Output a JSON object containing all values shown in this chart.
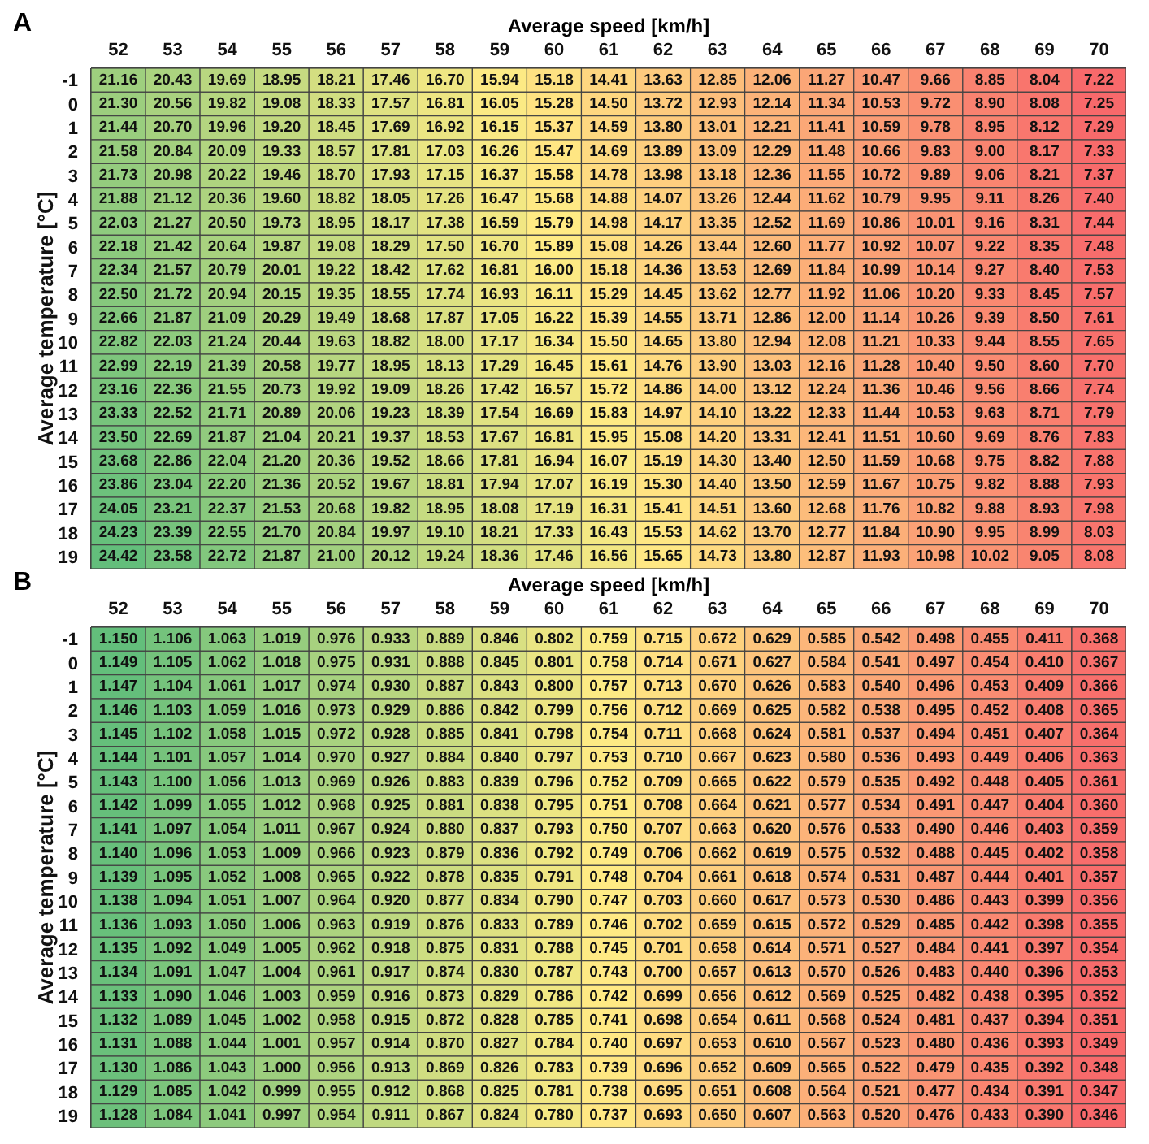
{
  "chart_data": [
    {
      "type": "heatmap",
      "title": "A",
      "xlabel": "Average speed [km/h]",
      "ylabel": "Average temperature [°C]",
      "data_labels": true,
      "categories": [
        "52",
        "53",
        "54",
        "55",
        "56",
        "57",
        "58",
        "59",
        "60",
        "61",
        "62",
        "63",
        "64",
        "65",
        "66",
        "67",
        "68",
        "69",
        "70"
      ],
      "y_categories": [
        "-1",
        "0",
        "1",
        "2",
        "3",
        "4",
        "5",
        "6",
        "7",
        "8",
        "9",
        "10",
        "11",
        "12",
        "13",
        "14",
        "15",
        "16",
        "17",
        "18",
        "19"
      ],
      "cell_labels": [
        [
          "21.16",
          "20.43",
          "19.69",
          "18.95",
          "18.21",
          "17.46",
          "16.70",
          "15.94",
          "15.18",
          "14.41",
          "13.63",
          "12.85",
          "12.06",
          "11.27",
          "10.47",
          "9.66",
          "8.85",
          "8.04",
          "7.22"
        ],
        [
          "21.30",
          "20.56",
          "19.82",
          "19.08",
          "18.33",
          "17.57",
          "16.81",
          "16.05",
          "15.28",
          "14.50",
          "13.72",
          "12.93",
          "12.14",
          "11.34",
          "10.53",
          "9.72",
          "8.90",
          "8.08",
          "7.25"
        ],
        [
          "21.44",
          "20.70",
          "19.96",
          "19.20",
          "18.45",
          "17.69",
          "16.92",
          "16.15",
          "15.37",
          "14.59",
          "13.80",
          "13.01",
          "12.21",
          "11.41",
          "10.59",
          "9.78",
          "8.95",
          "8.12",
          "7.29"
        ],
        [
          "21.58",
          "20.84",
          "20.09",
          "19.33",
          "18.57",
          "17.81",
          "17.03",
          "16.26",
          "15.47",
          "14.69",
          "13.89",
          "13.09",
          "12.29",
          "11.48",
          "10.66",
          "9.83",
          "9.00",
          "8.17",
          "7.33"
        ],
        [
          "21.73",
          "20.98",
          "20.22",
          "19.46",
          "18.70",
          "17.93",
          "17.15",
          "16.37",
          "15.58",
          "14.78",
          "13.98",
          "13.18",
          "12.36",
          "11.55",
          "10.72",
          "9.89",
          "9.06",
          "8.21",
          "7.37"
        ],
        [
          "21.88",
          "21.12",
          "20.36",
          "19.60",
          "18.82",
          "18.05",
          "17.26",
          "16.47",
          "15.68",
          "14.88",
          "14.07",
          "13.26",
          "12.44",
          "11.62",
          "10.79",
          "9.95",
          "9.11",
          "8.26",
          "7.40"
        ],
        [
          "22.03",
          "21.27",
          "20.50",
          "19.73",
          "18.95",
          "18.17",
          "17.38",
          "16.59",
          "15.79",
          "14.98",
          "14.17",
          "13.35",
          "12.52",
          "11.69",
          "10.86",
          "10.01",
          "9.16",
          "8.31",
          "7.44"
        ],
        [
          "22.18",
          "21.42",
          "20.64",
          "19.87",
          "19.08",
          "18.29",
          "17.50",
          "16.70",
          "15.89",
          "15.08",
          "14.26",
          "13.44",
          "12.60",
          "11.77",
          "10.92",
          "10.07",
          "9.22",
          "8.35",
          "7.48"
        ],
        [
          "22.34",
          "21.57",
          "20.79",
          "20.01",
          "19.22",
          "18.42",
          "17.62",
          "16.81",
          "16.00",
          "15.18",
          "14.36",
          "13.53",
          "12.69",
          "11.84",
          "10.99",
          "10.14",
          "9.27",
          "8.40",
          "7.53"
        ],
        [
          "22.50",
          "21.72",
          "20.94",
          "20.15",
          "19.35",
          "18.55",
          "17.74",
          "16.93",
          "16.11",
          "15.29",
          "14.45",
          "13.62",
          "12.77",
          "11.92",
          "11.06",
          "10.20",
          "9.33",
          "8.45",
          "7.57"
        ],
        [
          "22.66",
          "21.87",
          "21.09",
          "20.29",
          "19.49",
          "18.68",
          "17.87",
          "17.05",
          "16.22",
          "15.39",
          "14.55",
          "13.71",
          "12.86",
          "12.00",
          "11.14",
          "10.26",
          "9.39",
          "8.50",
          "7.61"
        ],
        [
          "22.82",
          "22.03",
          "21.24",
          "20.44",
          "19.63",
          "18.82",
          "18.00",
          "17.17",
          "16.34",
          "15.50",
          "14.65",
          "13.80",
          "12.94",
          "12.08",
          "11.21",
          "10.33",
          "9.44",
          "8.55",
          "7.65"
        ],
        [
          "22.99",
          "22.19",
          "21.39",
          "20.58",
          "19.77",
          "18.95",
          "18.13",
          "17.29",
          "16.45",
          "15.61",
          "14.76",
          "13.90",
          "13.03",
          "12.16",
          "11.28",
          "10.40",
          "9.50",
          "8.60",
          "7.70"
        ],
        [
          "23.16",
          "22.36",
          "21.55",
          "20.73",
          "19.92",
          "19.09",
          "18.26",
          "17.42",
          "16.57",
          "15.72",
          "14.86",
          "14.00",
          "13.12",
          "12.24",
          "11.36",
          "10.46",
          "9.56",
          "8.66",
          "7.74"
        ],
        [
          "23.33",
          "22.52",
          "21.71",
          "20.89",
          "20.06",
          "19.23",
          "18.39",
          "17.54",
          "16.69",
          "15.83",
          "14.97",
          "14.10",
          "13.22",
          "12.33",
          "11.44",
          "10.53",
          "9.63",
          "8.71",
          "7.79"
        ],
        [
          "23.50",
          "22.69",
          "21.87",
          "21.04",
          "20.21",
          "19.37",
          "18.53",
          "17.67",
          "16.81",
          "15.95",
          "15.08",
          "14.20",
          "13.31",
          "12.41",
          "11.51",
          "10.60",
          "9.69",
          "8.76",
          "7.83"
        ],
        [
          "23.68",
          "22.86",
          "22.04",
          "21.20",
          "20.36",
          "19.52",
          "18.66",
          "17.81",
          "16.94",
          "16.07",
          "15.19",
          "14.30",
          "13.40",
          "12.50",
          "11.59",
          "10.68",
          "9.75",
          "8.82",
          "7.88"
        ],
        [
          "23.86",
          "23.04",
          "22.20",
          "21.36",
          "20.52",
          "19.67",
          "18.81",
          "17.94",
          "17.07",
          "16.19",
          "15.30",
          "14.40",
          "13.50",
          "12.59",
          "11.67",
          "10.75",
          "9.82",
          "8.88",
          "7.93"
        ],
        [
          "24.05",
          "23.21",
          "22.37",
          "21.53",
          "20.68",
          "19.82",
          "18.95",
          "18.08",
          "17.19",
          "16.31",
          "15.41",
          "14.51",
          "13.60",
          "12.68",
          "11.76",
          "10.82",
          "9.88",
          "8.93",
          "7.98"
        ],
        [
          "24.23",
          "23.39",
          "22.55",
          "21.70",
          "20.84",
          "19.97",
          "19.10",
          "18.21",
          "17.33",
          "16.43",
          "15.53",
          "14.62",
          "13.70",
          "12.77",
          "11.84",
          "10.90",
          "9.95",
          "8.99",
          "8.03"
        ],
        [
          "24.42",
          "23.58",
          "22.72",
          "21.87",
          "21.00",
          "20.12",
          "19.24",
          "18.36",
          "17.46",
          "16.56",
          "15.65",
          "14.73",
          "13.80",
          "12.87",
          "11.93",
          "10.98",
          "10.02",
          "9.05",
          "8.08"
        ]
      ],
      "cells": [
        [
          21.16,
          20.43,
          19.69,
          18.95,
          18.21,
          17.46,
          16.7,
          15.94,
          15.18,
          14.41,
          13.63,
          12.85,
          12.06,
          11.27,
          10.47,
          9.66,
          8.85,
          8.04,
          7.22
        ],
        [
          21.3,
          20.56,
          19.82,
          19.08,
          18.33,
          17.57,
          16.81,
          16.05,
          15.28,
          14.5,
          13.72,
          12.93,
          12.14,
          11.34,
          10.53,
          9.72,
          8.9,
          8.08,
          7.25
        ],
        [
          21.44,
          20.7,
          19.96,
          19.2,
          18.45,
          17.69,
          16.92,
          16.15,
          15.37,
          14.59,
          13.8,
          13.01,
          12.21,
          11.41,
          10.59,
          9.78,
          8.95,
          8.12,
          7.29
        ],
        [
          21.58,
          20.84,
          20.09,
          19.33,
          18.57,
          17.81,
          17.03,
          16.26,
          15.47,
          14.69,
          13.89,
          13.09,
          12.29,
          11.48,
          10.66,
          9.83,
          9.0,
          8.17,
          7.33
        ],
        [
          21.73,
          20.98,
          20.22,
          19.46,
          18.7,
          17.93,
          17.15,
          16.37,
          15.58,
          14.78,
          13.98,
          13.18,
          12.36,
          11.55,
          10.72,
          9.89,
          9.06,
          8.21,
          7.37
        ],
        [
          21.88,
          21.12,
          20.36,
          19.6,
          18.82,
          18.05,
          17.26,
          16.47,
          15.68,
          14.88,
          14.07,
          13.26,
          12.44,
          11.62,
          10.79,
          9.95,
          9.11,
          8.26,
          7.4
        ],
        [
          22.03,
          21.27,
          20.5,
          19.73,
          18.95,
          18.17,
          17.38,
          16.59,
          15.79,
          14.98,
          14.17,
          13.35,
          12.52,
          11.69,
          10.86,
          10.01,
          9.16,
          8.31,
          7.44
        ],
        [
          22.18,
          21.42,
          20.64,
          19.87,
          19.08,
          18.29,
          17.5,
          16.7,
          15.89,
          15.08,
          14.26,
          13.44,
          12.6,
          11.77,
          10.92,
          10.07,
          9.22,
          8.35,
          7.48
        ],
        [
          22.34,
          21.57,
          20.79,
          20.01,
          19.22,
          18.42,
          17.62,
          16.81,
          16.0,
          15.18,
          14.36,
          13.53,
          12.69,
          11.84,
          10.99,
          10.14,
          9.27,
          8.4,
          7.53
        ],
        [
          22.5,
          21.72,
          20.94,
          20.15,
          19.35,
          18.55,
          17.74,
          16.93,
          16.11,
          15.29,
          14.45,
          13.62,
          12.77,
          11.92,
          11.06,
          10.2,
          9.33,
          8.45,
          7.57
        ],
        [
          22.66,
          21.87,
          21.09,
          20.29,
          19.49,
          18.68,
          17.87,
          17.05,
          16.22,
          15.39,
          14.55,
          13.71,
          12.86,
          12.0,
          11.14,
          10.26,
          9.39,
          8.5,
          7.61
        ],
        [
          22.82,
          22.03,
          21.24,
          20.44,
          19.63,
          18.82,
          18.0,
          17.17,
          16.34,
          15.5,
          14.65,
          13.8,
          12.94,
          12.08,
          11.21,
          10.33,
          9.44,
          8.55,
          7.65
        ],
        [
          22.99,
          22.19,
          21.39,
          20.58,
          19.77,
          18.95,
          18.13,
          17.29,
          16.45,
          15.61,
          14.76,
          13.9,
          13.03,
          12.16,
          11.28,
          10.4,
          9.5,
          8.6,
          7.7
        ],
        [
          23.16,
          22.36,
          21.55,
          20.73,
          19.92,
          19.09,
          18.26,
          17.42,
          16.57,
          15.72,
          14.86,
          14.0,
          13.12,
          12.24,
          11.36,
          10.46,
          9.56,
          8.66,
          7.74
        ],
        [
          23.33,
          22.52,
          21.71,
          20.89,
          20.06,
          19.23,
          18.39,
          17.54,
          16.69,
          15.83,
          14.97,
          14.1,
          13.22,
          12.33,
          11.44,
          10.53,
          9.63,
          8.71,
          7.79
        ],
        [
          23.5,
          22.69,
          21.87,
          21.04,
          20.21,
          19.37,
          18.53,
          17.67,
          16.81,
          15.95,
          15.08,
          14.2,
          13.31,
          12.41,
          11.51,
          10.6,
          9.69,
          8.76,
          7.83
        ],
        [
          23.68,
          22.86,
          22.04,
          21.2,
          20.36,
          19.52,
          18.66,
          17.81,
          16.94,
          16.07,
          15.19,
          14.3,
          13.4,
          12.5,
          11.59,
          10.68,
          9.75,
          8.82,
          7.88
        ],
        [
          23.86,
          23.04,
          22.2,
          21.36,
          20.52,
          19.67,
          18.81,
          17.94,
          17.07,
          16.19,
          15.3,
          14.4,
          13.5,
          12.59,
          11.67,
          10.75,
          9.82,
          8.88,
          7.93
        ],
        [
          24.05,
          23.21,
          22.37,
          21.53,
          20.68,
          19.82,
          18.95,
          18.08,
          17.19,
          16.31,
          15.41,
          14.51,
          13.6,
          12.68,
          11.76,
          10.82,
          9.88,
          8.93,
          7.98
        ],
        [
          24.23,
          23.39,
          22.55,
          21.7,
          20.84,
          19.97,
          19.1,
          18.21,
          17.33,
          16.43,
          15.53,
          14.62,
          13.7,
          12.77,
          11.84,
          10.9,
          9.95,
          8.99,
          8.03
        ],
        [
          24.42,
          23.58,
          22.72,
          21.87,
          21.0,
          20.12,
          19.24,
          18.36,
          17.46,
          16.56,
          15.65,
          14.73,
          13.8,
          12.87,
          11.93,
          10.98,
          10.02,
          9.05,
          8.08
        ]
      ]
    },
    {
      "type": "heatmap",
      "title": "B",
      "xlabel": "Average speed [km/h]",
      "ylabel": "Average temperature [°C]",
      "data_labels": true,
      "categories": [
        "52",
        "53",
        "54",
        "55",
        "56",
        "57",
        "58",
        "59",
        "60",
        "61",
        "62",
        "63",
        "64",
        "65",
        "66",
        "67",
        "68",
        "69",
        "70"
      ],
      "y_categories": [
        "-1",
        "0",
        "1",
        "2",
        "3",
        "4",
        "5",
        "6",
        "7",
        "8",
        "9",
        "10",
        "11",
        "12",
        "13",
        "14",
        "15",
        "16",
        "17",
        "18",
        "19"
      ],
      "cell_labels": [
        [
          "1.150",
          "1.106",
          "1.063",
          "1.019",
          "0.976",
          "0.933",
          "0.889",
          "0.846",
          "0.802",
          "0.759",
          "0.715",
          "0.672",
          "0.629",
          "0.585",
          "0.542",
          "0.498",
          "0.455",
          "0.411",
          "0.368"
        ],
        [
          "1.149",
          "1.105",
          "1.062",
          "1.018",
          "0.975",
          "0.931",
          "0.888",
          "0.845",
          "0.801",
          "0.758",
          "0.714",
          "0.671",
          "0.627",
          "0.584",
          "0.541",
          "0.497",
          "0.454",
          "0.410",
          "0.367"
        ],
        [
          "1.147",
          "1.104",
          "1.061",
          "1.017",
          "0.974",
          "0.930",
          "0.887",
          "0.843",
          "0.800",
          "0.757",
          "0.713",
          "0.670",
          "0.626",
          "0.583",
          "0.540",
          "0.496",
          "0.453",
          "0.409",
          "0.366"
        ],
        [
          "1.146",
          "1.103",
          "1.059",
          "1.016",
          "0.973",
          "0.929",
          "0.886",
          "0.842",
          "0.799",
          "0.756",
          "0.712",
          "0.669",
          "0.625",
          "0.582",
          "0.538",
          "0.495",
          "0.452",
          "0.408",
          "0.365"
        ],
        [
          "1.145",
          "1.102",
          "1.058",
          "1.015",
          "0.972",
          "0.928",
          "0.885",
          "0.841",
          "0.798",
          "0.754",
          "0.711",
          "0.668",
          "0.624",
          "0.581",
          "0.537",
          "0.494",
          "0.451",
          "0.407",
          "0.364"
        ],
        [
          "1.144",
          "1.101",
          "1.057",
          "1.014",
          "0.970",
          "0.927",
          "0.884",
          "0.840",
          "0.797",
          "0.753",
          "0.710",
          "0.667",
          "0.623",
          "0.580",
          "0.536",
          "0.493",
          "0.449",
          "0.406",
          "0.363"
        ],
        [
          "1.143",
          "1.100",
          "1.056",
          "1.013",
          "0.969",
          "0.926",
          "0.883",
          "0.839",
          "0.796",
          "0.752",
          "0.709",
          "0.665",
          "0.622",
          "0.579",
          "0.535",
          "0.492",
          "0.448",
          "0.405",
          "0.361"
        ],
        [
          "1.142",
          "1.099",
          "1.055",
          "1.012",
          "0.968",
          "0.925",
          "0.881",
          "0.838",
          "0.795",
          "0.751",
          "0.708",
          "0.664",
          "0.621",
          "0.577",
          "0.534",
          "0.491",
          "0.447",
          "0.404",
          "0.360"
        ],
        [
          "1.141",
          "1.097",
          "1.054",
          "1.011",
          "0.967",
          "0.924",
          "0.880",
          "0.837",
          "0.793",
          "0.750",
          "0.707",
          "0.663",
          "0.620",
          "0.576",
          "0.533",
          "0.490",
          "0.446",
          "0.403",
          "0.359"
        ],
        [
          "1.140",
          "1.096",
          "1.053",
          "1.009",
          "0.966",
          "0.923",
          "0.879",
          "0.836",
          "0.792",
          "0.749",
          "0.706",
          "0.662",
          "0.619",
          "0.575",
          "0.532",
          "0.488",
          "0.445",
          "0.402",
          "0.358"
        ],
        [
          "1.139",
          "1.095",
          "1.052",
          "1.008",
          "0.965",
          "0.922",
          "0.878",
          "0.835",
          "0.791",
          "0.748",
          "0.704",
          "0.661",
          "0.618",
          "0.574",
          "0.531",
          "0.487",
          "0.444",
          "0.401",
          "0.357"
        ],
        [
          "1.138",
          "1.094",
          "1.051",
          "1.007",
          "0.964",
          "0.920",
          "0.877",
          "0.834",
          "0.790",
          "0.747",
          "0.703",
          "0.660",
          "0.617",
          "0.573",
          "0.530",
          "0.486",
          "0.443",
          "0.399",
          "0.356"
        ],
        [
          "1.136",
          "1.093",
          "1.050",
          "1.006",
          "0.963",
          "0.919",
          "0.876",
          "0.833",
          "0.789",
          "0.746",
          "0.702",
          "0.659",
          "0.615",
          "0.572",
          "0.529",
          "0.485",
          "0.442",
          "0.398",
          "0.355"
        ],
        [
          "1.135",
          "1.092",
          "1.049",
          "1.005",
          "0.962",
          "0.918",
          "0.875",
          "0.831",
          "0.788",
          "0.745",
          "0.701",
          "0.658",
          "0.614",
          "0.571",
          "0.527",
          "0.484",
          "0.441",
          "0.397",
          "0.354"
        ],
        [
          "1.134",
          "1.091",
          "1.047",
          "1.004",
          "0.961",
          "0.917",
          "0.874",
          "0.830",
          "0.787",
          "0.743",
          "0.700",
          "0.657",
          "0.613",
          "0.570",
          "0.526",
          "0.483",
          "0.440",
          "0.396",
          "0.353"
        ],
        [
          "1.133",
          "1.090",
          "1.046",
          "1.003",
          "0.959",
          "0.916",
          "0.873",
          "0.829",
          "0.786",
          "0.742",
          "0.699",
          "0.656",
          "0.612",
          "0.569",
          "0.525",
          "0.482",
          "0.438",
          "0.395",
          "0.352"
        ],
        [
          "1.132",
          "1.089",
          "1.045",
          "1.002",
          "0.958",
          "0.915",
          "0.872",
          "0.828",
          "0.785",
          "0.741",
          "0.698",
          "0.654",
          "0.611",
          "0.568",
          "0.524",
          "0.481",
          "0.437",
          "0.394",
          "0.351"
        ],
        [
          "1.131",
          "1.088",
          "1.044",
          "1.001",
          "0.957",
          "0.914",
          "0.870",
          "0.827",
          "0.784",
          "0.740",
          "0.697",
          "0.653",
          "0.610",
          "0.567",
          "0.523",
          "0.480",
          "0.436",
          "0.393",
          "0.349"
        ],
        [
          "1.130",
          "1.086",
          "1.043",
          "1.000",
          "0.956",
          "0.913",
          "0.869",
          "0.826",
          "0.783",
          "0.739",
          "0.696",
          "0.652",
          "0.609",
          "0.565",
          "0.522",
          "0.479",
          "0.435",
          "0.392",
          "0.348"
        ],
        [
          "1.129",
          "1.085",
          "1.042",
          "0.999",
          "0.955",
          "0.912",
          "0.868",
          "0.825",
          "0.781",
          "0.738",
          "0.695",
          "0.651",
          "0.608",
          "0.564",
          "0.521",
          "0.477",
          "0.434",
          "0.391",
          "0.347"
        ],
        [
          "1.128",
          "1.084",
          "1.041",
          "0.997",
          "0.954",
          "0.911",
          "0.867",
          "0.824",
          "0.780",
          "0.737",
          "0.693",
          "0.650",
          "0.607",
          "0.563",
          "0.520",
          "0.476",
          "0.433",
          "0.390",
          "0.346"
        ]
      ],
      "cells": [
        [
          1.15,
          1.106,
          1.063,
          1.019,
          0.976,
          0.933,
          0.889,
          0.846,
          0.802,
          0.759,
          0.715,
          0.672,
          0.629,
          0.585,
          0.542,
          0.498,
          0.455,
          0.411,
          0.368
        ],
        [
          1.149,
          1.105,
          1.062,
          1.018,
          0.975,
          0.931,
          0.888,
          0.845,
          0.801,
          0.758,
          0.714,
          0.671,
          0.627,
          0.584,
          0.541,
          0.497,
          0.454,
          0.41,
          0.367
        ],
        [
          1.147,
          1.104,
          1.061,
          1.017,
          0.974,
          0.93,
          0.887,
          0.843,
          0.8,
          0.757,
          0.713,
          0.67,
          0.626,
          0.583,
          0.54,
          0.496,
          0.453,
          0.409,
          0.366
        ],
        [
          1.146,
          1.103,
          1.059,
          1.016,
          0.973,
          0.929,
          0.886,
          0.842,
          0.799,
          0.756,
          0.712,
          0.669,
          0.625,
          0.582,
          0.538,
          0.495,
          0.452,
          0.408,
          0.365
        ],
        [
          1.145,
          1.102,
          1.058,
          1.015,
          0.972,
          0.928,
          0.885,
          0.841,
          0.798,
          0.754,
          0.711,
          0.668,
          0.624,
          0.581,
          0.537,
          0.494,
          0.451,
          0.407,
          0.364
        ],
        [
          1.144,
          1.101,
          1.057,
          1.014,
          0.97,
          0.927,
          0.884,
          0.84,
          0.797,
          0.753,
          0.71,
          0.667,
          0.623,
          0.58,
          0.536,
          0.493,
          0.449,
          0.406,
          0.363
        ],
        [
          1.143,
          1.1,
          1.056,
          1.013,
          0.969,
          0.926,
          0.883,
          0.839,
          0.796,
          0.752,
          0.709,
          0.665,
          0.622,
          0.579,
          0.535,
          0.492,
          0.448,
          0.405,
          0.361
        ],
        [
          1.142,
          1.099,
          1.055,
          1.012,
          0.968,
          0.925,
          0.881,
          0.838,
          0.795,
          0.751,
          0.708,
          0.664,
          0.621,
          0.577,
          0.534,
          0.491,
          0.447,
          0.404,
          0.36
        ],
        [
          1.141,
          1.097,
          1.054,
          1.011,
          0.967,
          0.924,
          0.88,
          0.837,
          0.793,
          0.75,
          0.707,
          0.663,
          0.62,
          0.576,
          0.533,
          0.49,
          0.446,
          0.403,
          0.359
        ],
        [
          1.14,
          1.096,
          1.053,
          1.009,
          0.966,
          0.923,
          0.879,
          0.836,
          0.792,
          0.749,
          0.706,
          0.662,
          0.619,
          0.575,
          0.532,
          0.488,
          0.445,
          0.402,
          0.358
        ],
        [
          1.139,
          1.095,
          1.052,
          1.008,
          0.965,
          0.922,
          0.878,
          0.835,
          0.791,
          0.748,
          0.704,
          0.661,
          0.618,
          0.574,
          0.531,
          0.487,
          0.444,
          0.401,
          0.357
        ],
        [
          1.138,
          1.094,
          1.051,
          1.007,
          0.964,
          0.92,
          0.877,
          0.834,
          0.79,
          0.747,
          0.703,
          0.66,
          0.617,
          0.573,
          0.53,
          0.486,
          0.443,
          0.399,
          0.356
        ],
        [
          1.136,
          1.093,
          1.05,
          1.006,
          0.963,
          0.919,
          0.876,
          0.833,
          0.789,
          0.746,
          0.702,
          0.659,
          0.615,
          0.572,
          0.529,
          0.485,
          0.442,
          0.398,
          0.355
        ],
        [
          1.135,
          1.092,
          1.049,
          1.005,
          0.962,
          0.918,
          0.875,
          0.831,
          0.788,
          0.745,
          0.701,
          0.658,
          0.614,
          0.571,
          0.527,
          0.484,
          0.441,
          0.397,
          0.354
        ],
        [
          1.134,
          1.091,
          1.047,
          1.004,
          0.961,
          0.917,
          0.874,
          0.83,
          0.787,
          0.743,
          0.7,
          0.657,
          0.613,
          0.57,
          0.526,
          0.483,
          0.44,
          0.396,
          0.353
        ],
        [
          1.133,
          1.09,
          1.046,
          1.003,
          0.959,
          0.916,
          0.873,
          0.829,
          0.786,
          0.742,
          0.699,
          0.656,
          0.612,
          0.569,
          0.525,
          0.482,
          0.438,
          0.395,
          0.352
        ],
        [
          1.132,
          1.089,
          1.045,
          1.002,
          0.958,
          0.915,
          0.872,
          0.828,
          0.785,
          0.741,
          0.698,
          0.654,
          0.611,
          0.568,
          0.524,
          0.481,
          0.437,
          0.394,
          0.351
        ],
        [
          1.131,
          1.088,
          1.044,
          1.001,
          0.957,
          0.914,
          0.87,
          0.827,
          0.784,
          0.74,
          0.697,
          0.653,
          0.61,
          0.567,
          0.523,
          0.48,
          0.436,
          0.393,
          0.349
        ],
        [
          1.13,
          1.086,
          1.043,
          1.0,
          0.956,
          0.913,
          0.869,
          0.826,
          0.783,
          0.739,
          0.696,
          0.652,
          0.609,
          0.565,
          0.522,
          0.479,
          0.435,
          0.392,
          0.348
        ],
        [
          1.129,
          1.085,
          1.042,
          0.999,
          0.955,
          0.912,
          0.868,
          0.825,
          0.781,
          0.738,
          0.695,
          0.651,
          0.608,
          0.564,
          0.521,
          0.477,
          0.434,
          0.391,
          0.347
        ],
        [
          1.128,
          1.084,
          1.041,
          0.997,
          0.954,
          0.911,
          0.867,
          0.824,
          0.78,
          0.737,
          0.693,
          0.65,
          0.607,
          0.563,
          0.52,
          0.476,
          0.433,
          0.39,
          0.346
        ]
      ]
    }
  ]
}
